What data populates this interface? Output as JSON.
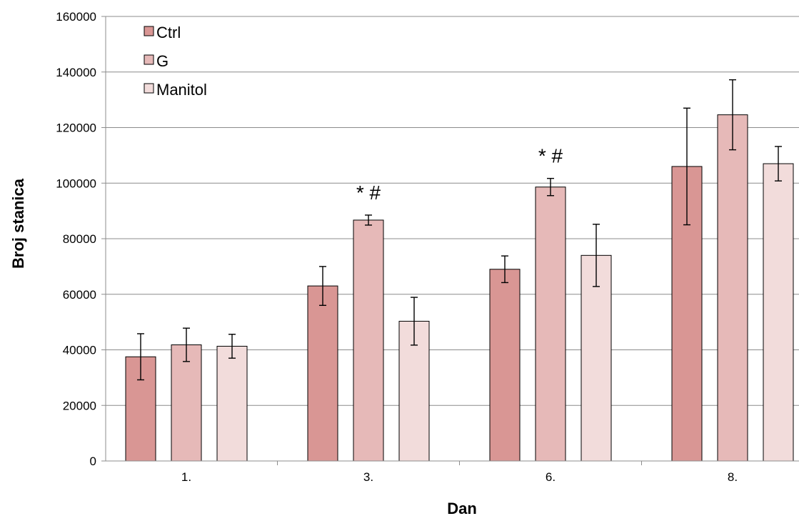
{
  "chart_data": {
    "type": "bar",
    "title": "",
    "xlabel": "Dan",
    "ylabel": "Broj stanica",
    "categories": [
      "1.",
      "3.",
      "6.",
      "8."
    ],
    "ylim": [
      0,
      160000
    ],
    "yticks": [
      0,
      20000,
      40000,
      60000,
      80000,
      100000,
      120000,
      140000,
      160000
    ],
    "ytick_labels": [
      "0",
      "20000",
      "40000",
      "60000",
      "80000",
      "100000",
      "120000",
      "140000",
      "160000"
    ],
    "grid": true,
    "legend_position": "top-left",
    "series": [
      {
        "name": "Ctrl",
        "color": "#d99694",
        "values": [
          37500,
          63000,
          69000,
          106000
        ],
        "errors": [
          8300,
          7000,
          4800,
          21000
        ]
      },
      {
        "name": "G",
        "color": "#e6b9b8",
        "values": [
          41800,
          86700,
          98600,
          124600
        ],
        "errors": [
          6000,
          1800,
          3100,
          12600
        ]
      },
      {
        "name": "Manitol",
        "color": "#f2dcdb",
        "values": [
          41300,
          50300,
          74000,
          107000
        ],
        "errors": [
          4300,
          8600,
          11200,
          6200
        ]
      }
    ],
    "annotations": [
      {
        "category_index": 1,
        "series_index": 1,
        "text": "* #"
      },
      {
        "category_index": 2,
        "series_index": 1,
        "text": "* #"
      }
    ]
  }
}
